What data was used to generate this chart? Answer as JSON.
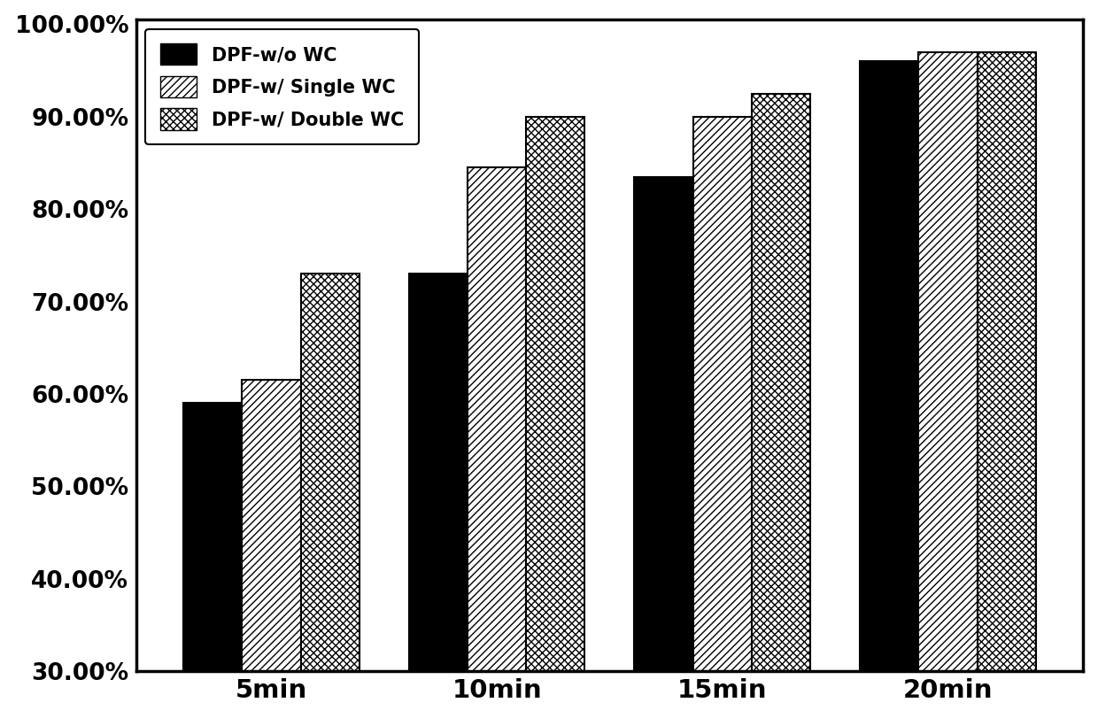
{
  "categories": [
    "5min",
    "10min",
    "15min",
    "20min"
  ],
  "series": {
    "DPF-w/o WC": [
      0.59,
      0.73,
      0.835,
      0.96
    ],
    "DPF-w/ Single WC": [
      0.615,
      0.845,
      0.9,
      0.97
    ],
    "DPF-w/ Double WC": [
      0.73,
      0.9,
      0.925,
      0.97
    ]
  },
  "ylim": [
    0.3,
    1.005
  ],
  "yticks": [
    0.3,
    0.4,
    0.5,
    0.6,
    0.7,
    0.8,
    0.9,
    1.0
  ],
  "ytick_labels": [
    "30.00%",
    "40.00%",
    "50.00%",
    "60.00%",
    "70.00%",
    "80.00%",
    "90.00%",
    "100.00%"
  ],
  "background_color": "#ffffff",
  "bar_width": 0.26,
  "legend_labels": [
    "DPF-w/o WC",
    "DPF-w/ Single WC",
    "DPF-w/ Double WC"
  ],
  "font_size_ticks": 19,
  "font_size_legend": 15,
  "font_size_xticks": 21,
  "font_weight": "bold"
}
